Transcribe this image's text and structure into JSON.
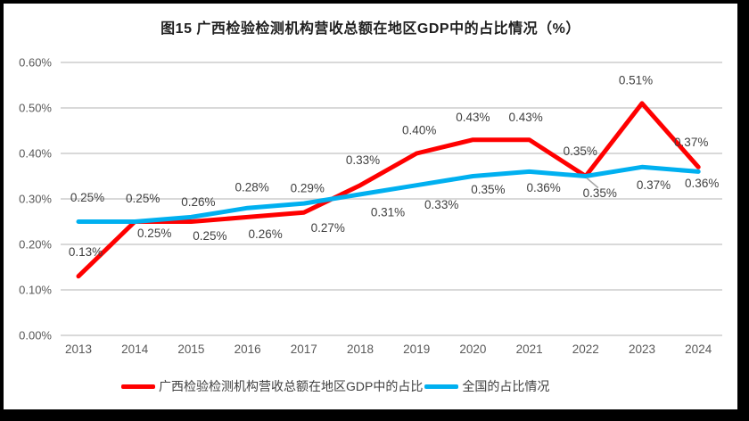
{
  "title": "图15 广西检验检测机构营收总额在地区GDP中的占比情况（%）",
  "chart_data": {
    "type": "line",
    "categories": [
      "2013",
      "2014",
      "2015",
      "2016",
      "2017",
      "2018",
      "2019",
      "2020",
      "2021",
      "2022",
      "2023",
      "2024"
    ],
    "series": [
      {
        "name": "广西检验检测机构营收总额在地区GDP中的占比",
        "color": "#FF0000",
        "values": [
          0.13,
          0.25,
          0.25,
          0.26,
          0.27,
          0.33,
          0.4,
          0.43,
          0.43,
          0.35,
          0.51,
          0.37
        ],
        "labels": [
          "0.13%",
          "0.25%",
          "0.25%",
          "0.26%",
          "0.27%",
          "0.33%",
          "0.40%",
          "0.43%",
          "0.43%",
          "0.35%",
          "0.51%",
          "0.37%"
        ]
      },
      {
        "name": "全国的占比情况",
        "color": "#00B0F0",
        "values": [
          0.25,
          0.25,
          0.26,
          0.28,
          0.29,
          0.31,
          0.33,
          0.35,
          0.36,
          0.35,
          0.37,
          0.36
        ],
        "labels": [
          "0.25%",
          "0.25%",
          "0.26%",
          "0.28%",
          "0.29%",
          "0.31%",
          "0.33%",
          "0.35%",
          "0.36%",
          "0.35%",
          "0.37%",
          "0.36%"
        ]
      }
    ],
    "y_ticks": [
      "0.00%",
      "0.10%",
      "0.20%",
      "0.30%",
      "0.40%",
      "0.50%",
      "0.60%"
    ],
    "ylim": [
      0,
      0.6
    ],
    "grid": true,
    "legend_position": "bottom",
    "annotations": {
      "leader_line_point": {
        "series_index": 1,
        "category": "2022",
        "label": "0.35%"
      }
    }
  },
  "colors": {
    "guangxi_series": "#FF0000",
    "national_series": "#00B0F0",
    "gridline": "#D9D9D9",
    "axis_text": "#595959",
    "data_label_text": "#404040",
    "leader_line": "#A6A6A6",
    "frame_border": "#000000",
    "background": "#FFFFFF"
  }
}
